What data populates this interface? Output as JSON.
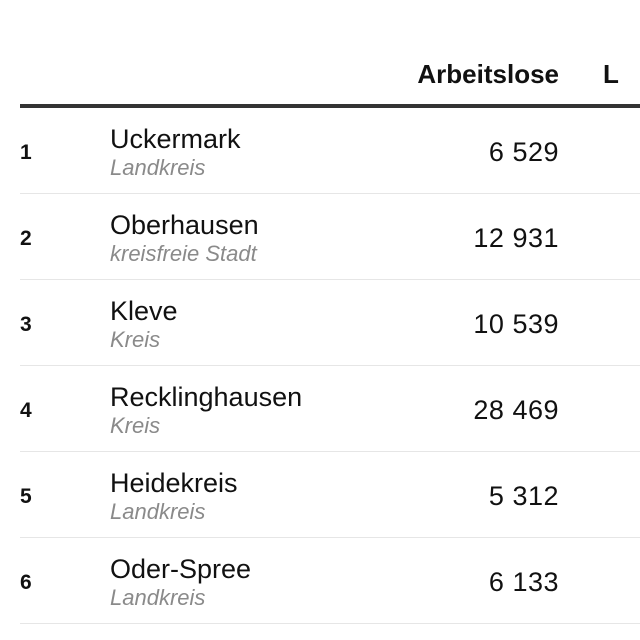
{
  "table": {
    "columns": {
      "unemployed": "Arbeitslose",
      "next_truncated": "L"
    },
    "rows": [
      {
        "rank": "1",
        "name": "Uckermark",
        "type": "Landkreis",
        "unemployed": "6 529"
      },
      {
        "rank": "2",
        "name": "Oberhausen",
        "type": "kreisfreie Stadt",
        "unemployed": "12 931"
      },
      {
        "rank": "3",
        "name": "Kleve",
        "type": "Kreis",
        "unemployed": "10 539"
      },
      {
        "rank": "4",
        "name": "Recklinghausen",
        "type": "Kreis",
        "unemployed": "28 469"
      },
      {
        "rank": "5",
        "name": "Heidekreis",
        "type": "Landkreis",
        "unemployed": "5 312"
      },
      {
        "rank": "6",
        "name": "Oder-Spree",
        "type": "Landkreis",
        "unemployed": "6 133"
      }
    ]
  }
}
